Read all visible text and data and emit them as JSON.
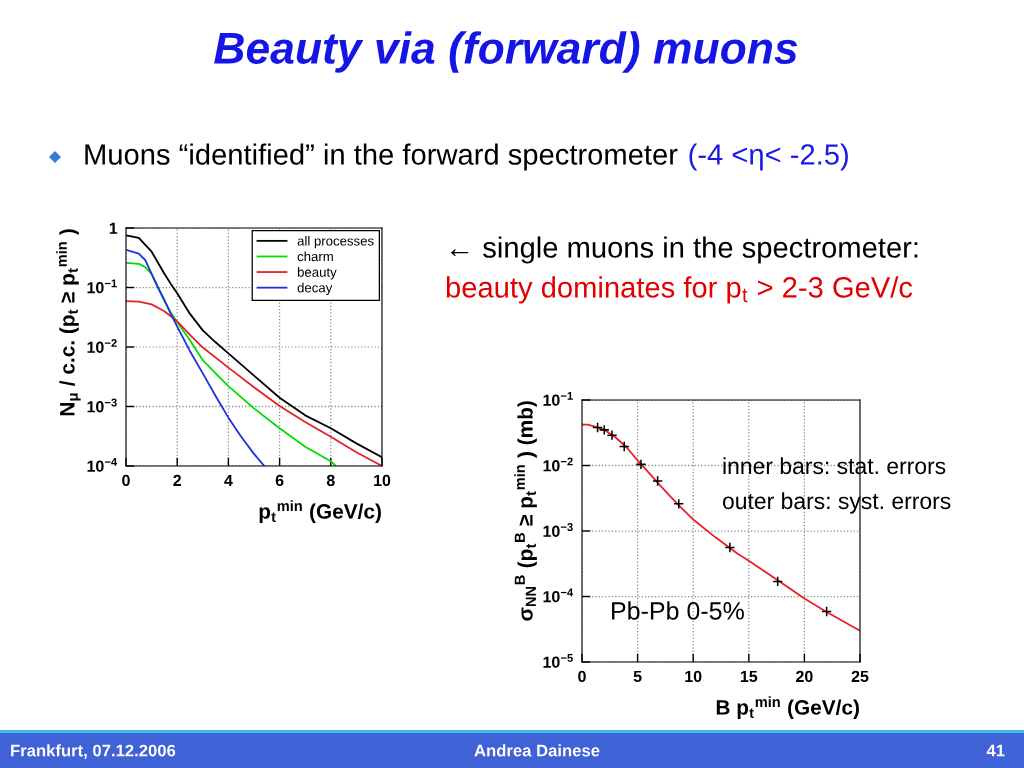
{
  "chart_data": [
    {
      "type": "line",
      "title": "Beauty via (forward) muons",
      "subtitle": "Muons “identified” in the forward spectrometer",
      "xlabel": "p$_{t}$$^{min}$ (GeV/c)",
      "ylabel": "N$_{μ}$ / c.c. (p$_{t}$ ≥ p$_{t}$$^{min}$ )",
      "annotations": [
        "(-4 <η< -2.5)",
        "← single muons in the spectrometer:",
        "beauty dominates for p$_{t}$ > 2-3 GeV/c",
        "Frankfurt, 07.12.2006",
        "Andrea Dainese",
        "41"
      ],
      "series": [
        {
          "name": "all processes",
          "color": "#000000",
          "x": [
            0,
            0.5,
            1,
            1.25,
            1.5,
            1.75,
            2,
            2.5,
            3,
            3.5,
            4,
            5,
            6,
            7,
            8,
            9,
            10
          ],
          "values": [
            0.75,
            0.68,
            0.4,
            0.26,
            0.17,
            0.115,
            0.08,
            0.036,
            0.019,
            0.012,
            0.0078,
            0.0033,
            0.0014,
            0.00071,
            0.00043,
            0.00024,
            0.00014
          ]
        },
        {
          "name": "charm",
          "color": "#00dd00",
          "x": [
            0,
            0.5,
            0.75,
            1,
            1.25,
            1.5,
            1.75,
            2,
            2.5,
            3,
            3.5,
            4,
            5,
            6,
            7,
            8,
            8.2
          ],
          "values": [
            0.26,
            0.25,
            0.22,
            0.17,
            0.1,
            0.059,
            0.038,
            0.026,
            0.013,
            0.006,
            0.0036,
            0.0022,
            0.00093,
            0.00043,
            0.00021,
            0.00012,
            0.0001
          ]
        },
        {
          "name": "beauty",
          "color": "#e8202a",
          "x": [
            0,
            0.5,
            1,
            1.5,
            2,
            2.5,
            3,
            4,
            5,
            6,
            7,
            8,
            9,
            10
          ],
          "values": [
            0.059,
            0.058,
            0.052,
            0.04,
            0.027,
            0.016,
            0.0098,
            0.0045,
            0.0021,
            0.00102,
            0.00055,
            0.00031,
            0.00017,
            0.0001
          ]
        },
        {
          "name": "decay",
          "color": "#2030e0",
          "x": [
            0,
            0.5,
            0.75,
            1,
            1.25,
            1.5,
            1.75,
            2,
            2.5,
            3,
            3.5,
            4,
            4.5,
            5,
            5.4
          ],
          "values": [
            0.43,
            0.37,
            0.29,
            0.17,
            0.1,
            0.062,
            0.036,
            0.022,
            0.0085,
            0.0036,
            0.0015,
            0.00065,
            0.00031,
            0.00016,
            0.0001
          ]
        }
      ],
      "xlim": [
        0,
        10
      ],
      "xticks": [
        0,
        2,
        4,
        6,
        8,
        10
      ],
      "ylim": [
        0.0001,
        1
      ],
      "yticks": [
        {
          "value": 0.0001,
          "label": "10$^{−4}$"
        },
        {
          "value": 0.001,
          "label": "10$^{−3}$"
        },
        {
          "value": 0.01,
          "label": "10$^{−2}$"
        },
        {
          "value": 0.1,
          "label": "10$^{−1}$"
        },
        1
      ],
      "log": "y",
      "grid": true,
      "legend": "top right"
    },
    {
      "type": "scatter",
      "xlabel": "B p$_{t}$$^{min}$ (GeV/c)",
      "ylabel": "σ$_{NN}$$^{B}$ (p$_{t}$$^{B}$ ≥ p$_{t}$$^{min}$ ) (mb)",
      "annotations": [
        "inner bars: stat. errors",
        "outer bars: syst. errors",
        "Pb-Pb 0-5%"
      ],
      "series": [
        {
          "type": "line",
          "color": "#e8202a",
          "x": [
            0,
            0.5,
            1,
            2,
            3,
            4,
            5,
            6,
            7,
            8,
            9,
            10,
            12,
            14,
            15,
            16,
            18,
            20,
            22,
            25
          ],
          "values": [
            0.042,
            0.042,
            0.04,
            0.035,
            0.027,
            0.019,
            0.012,
            0.0078,
            0.005,
            0.0033,
            0.0022,
            0.0015,
            0.0008,
            0.00045,
            0.00035,
            0.00027,
            0.00016,
            9.3e-05,
            5.8e-05,
            3e-05
          ]
        },
        {
          "type": "scatter",
          "color": "#000000",
          "marker": "cross",
          "x": [
            1.4,
            2.0,
            2.7,
            3.8,
            5.3,
            6.8,
            8.7,
            13.3,
            17.6,
            22.0
          ],
          "values": [
            0.038,
            0.035,
            0.029,
            0.0195,
            0.0104,
            0.0058,
            0.0026,
            0.00056,
            0.00017,
            5.9e-05
          ]
        }
      ],
      "xlim": [
        0,
        25
      ],
      "xticks": [
        0,
        5,
        10,
        15,
        20,
        25
      ],
      "ylim": [
        1e-05,
        0.1
      ],
      "yticks": [
        {
          "value": 1e-05,
          "label": "10$^{−5}$"
        },
        {
          "value": 0.0001,
          "label": "10$^{−4}$"
        },
        {
          "value": 0.001,
          "label": "10$^{−3}$"
        },
        {
          "value": 0.01,
          "label": "10$^{−2}$"
        },
        {
          "value": 0.1,
          "label": "10$^{−1}$"
        }
      ],
      "log": "y",
      "grid": true
    }
  ]
}
